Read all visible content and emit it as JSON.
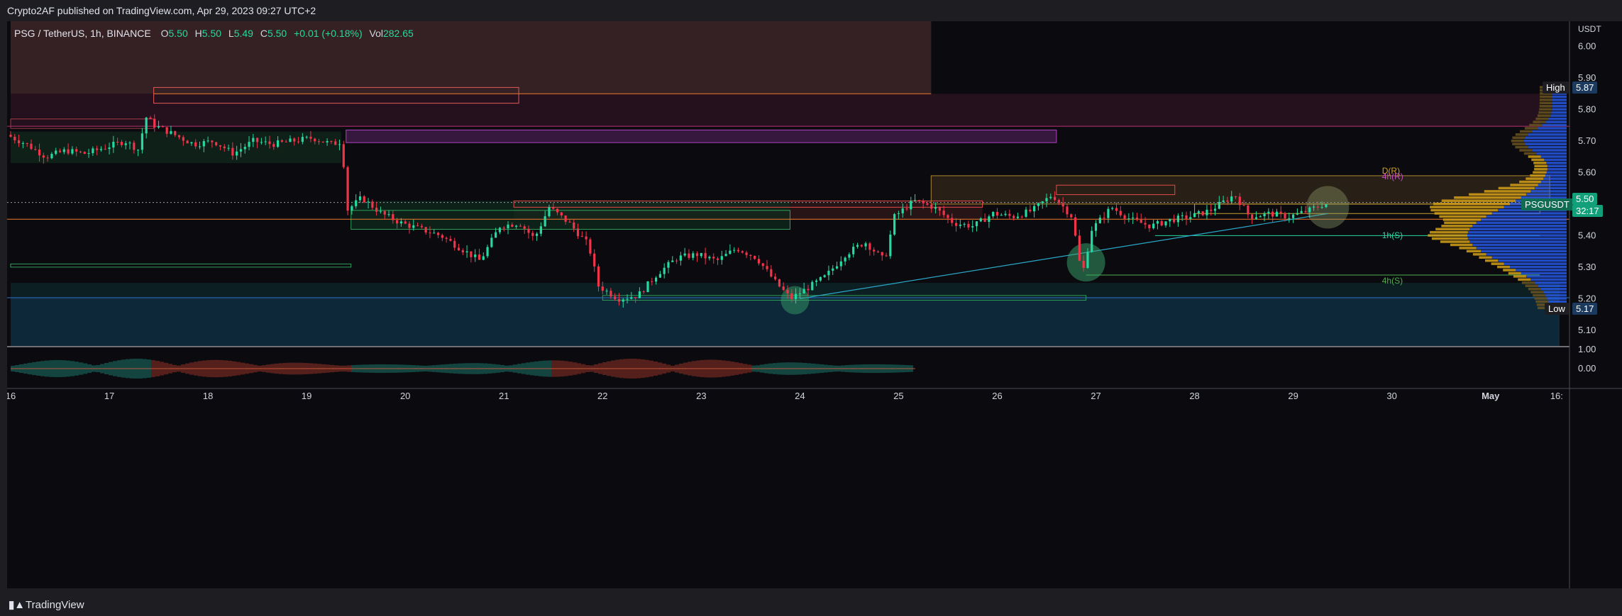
{
  "header": {
    "publisher_line": "Crypto2AF published on TradingView.com, Apr 29, 2023 09:27 UTC+2"
  },
  "legend": {
    "symbol": "PSG / TetherUS, 1h, BINANCE",
    "open_label": "O",
    "open": "5.50",
    "high_label": "H",
    "high": "5.50",
    "low_label": "L",
    "low": "5.49",
    "close_label": "C",
    "close": "5.50",
    "change": "+0.01 (+0.18%)",
    "vol_label": "Vol",
    "vol": "282.65"
  },
  "axis": {
    "currency": "USDT",
    "high_label": "High",
    "high_value": "5.87",
    "low_label": "Low",
    "low_value": "5.17",
    "current_symbol": "PSGUSDT",
    "current_price": "5.50",
    "countdown": "32:17"
  },
  "annotations": {
    "d_r": "D(R)",
    "h4_r": "4h(R)",
    "h1_s": "1h(S)",
    "h4_s": "4h(S)"
  },
  "footer": {
    "brand": "TradingView",
    "logo_icon": "tradingview-logo-icon"
  },
  "colors": {
    "bull": "#26d9a0",
    "bear": "#f0344a",
    "axis_text": "#d1d4dc",
    "volume_profile_blue": "#2962ff",
    "volume_profile_orange": "#d4a017"
  },
  "chart_data": {
    "type": "candlestick",
    "title": "PSG / TetherUS, 1h, BINANCE",
    "ylim": [
      5.05,
      6.08
    ],
    "y_ticks": [
      "6.00",
      "5.90",
      "5.80",
      "5.70",
      "5.60",
      "5.50",
      "5.40",
      "5.30",
      "5.20",
      "5.10"
    ],
    "x_ticks": [
      {
        "label": "16",
        "day": 16
      },
      {
        "label": "17",
        "day": 17
      },
      {
        "label": "18",
        "day": 18
      },
      {
        "label": "19",
        "day": 19
      },
      {
        "label": "20",
        "day": 20
      },
      {
        "label": "21",
        "day": 21
      },
      {
        "label": "22",
        "day": 22
      },
      {
        "label": "23",
        "day": 23
      },
      {
        "label": "24",
        "day": 24
      },
      {
        "label": "25",
        "day": 25
      },
      {
        "label": "26",
        "day": 26
      },
      {
        "label": "27",
        "day": 27
      },
      {
        "label": "28",
        "day": 28
      },
      {
        "label": "29",
        "day": 29
      },
      {
        "label": "30",
        "day": 30
      },
      {
        "label": "May",
        "day": 31
      },
      {
        "label": "16:",
        "day": 31.67
      }
    ],
    "xlim_days": [
      16,
      31.75
    ],
    "close_path": [
      [
        16.0,
        5.72
      ],
      [
        16.2,
        5.69
      ],
      [
        16.4,
        5.65
      ],
      [
        16.6,
        5.67
      ],
      [
        16.8,
        5.66
      ],
      [
        17.0,
        5.68
      ],
      [
        17.2,
        5.7
      ],
      [
        17.35,
        5.67
      ],
      [
        17.4,
        5.78
      ],
      [
        17.5,
        5.75
      ],
      [
        17.7,
        5.72
      ],
      [
        17.9,
        5.69
      ],
      [
        18.1,
        5.7
      ],
      [
        18.3,
        5.66
      ],
      [
        18.5,
        5.7
      ],
      [
        18.7,
        5.69
      ],
      [
        18.9,
        5.7
      ],
      [
        19.1,
        5.71
      ],
      [
        19.3,
        5.69
      ],
      [
        19.4,
        5.7
      ],
      [
        19.45,
        5.48
      ],
      [
        19.6,
        5.52
      ],
      [
        19.8,
        5.47
      ],
      [
        20.0,
        5.44
      ],
      [
        20.2,
        5.42
      ],
      [
        20.4,
        5.4
      ],
      [
        20.6,
        5.36
      ],
      [
        20.8,
        5.32
      ],
      [
        21.0,
        5.43
      ],
      [
        21.2,
        5.44
      ],
      [
        21.35,
        5.39
      ],
      [
        21.5,
        5.49
      ],
      [
        21.7,
        5.44
      ],
      [
        21.9,
        5.37
      ],
      [
        22.0,
        5.24
      ],
      [
        22.2,
        5.2
      ],
      [
        22.4,
        5.21
      ],
      [
        22.6,
        5.28
      ],
      [
        22.8,
        5.33
      ],
      [
        23.0,
        5.34
      ],
      [
        23.2,
        5.32
      ],
      [
        23.4,
        5.36
      ],
      [
        23.6,
        5.33
      ],
      [
        23.8,
        5.25
      ],
      [
        23.95,
        5.2
      ],
      [
        24.1,
        5.23
      ],
      [
        24.3,
        5.27
      ],
      [
        24.5,
        5.34
      ],
      [
        24.7,
        5.38
      ],
      [
        24.9,
        5.32
      ],
      [
        25.0,
        5.46
      ],
      [
        25.2,
        5.51
      ],
      [
        25.4,
        5.49
      ],
      [
        25.6,
        5.44
      ],
      [
        25.8,
        5.43
      ],
      [
        26.0,
        5.47
      ],
      [
        26.2,
        5.46
      ],
      [
        26.4,
        5.48
      ],
      [
        26.6,
        5.53
      ],
      [
        26.8,
        5.46
      ],
      [
        26.9,
        5.27
      ],
      [
        27.0,
        5.42
      ],
      [
        27.2,
        5.49
      ],
      [
        27.4,
        5.45
      ],
      [
        27.6,
        5.43
      ],
      [
        27.8,
        5.45
      ],
      [
        28.0,
        5.46
      ],
      [
        28.2,
        5.48
      ],
      [
        28.45,
        5.53
      ],
      [
        28.6,
        5.46
      ],
      [
        28.8,
        5.47
      ],
      [
        29.0,
        5.46
      ],
      [
        29.2,
        5.48
      ],
      [
        29.35,
        5.5
      ]
    ],
    "levels": [
      {
        "y": 5.505,
        "color": "#9aa0a6",
        "style": "dotted"
      },
      {
        "y": 5.452,
        "color": "#f07a2c"
      },
      {
        "y": 5.747,
        "color": "#b03070"
      },
      {
        "y": 5.203,
        "color": "#2f73c2"
      },
      {
        "y": 5.4,
        "color": "#26d9a0",
        "x0": 27.6,
        "x1": 31.5
      },
      {
        "y": 5.275,
        "color": "#4caf50",
        "x0": 26.9,
        "x1": 31.5
      }
    ],
    "volume_profile": {
      "current_price": 5.5,
      "high": 5.87,
      "low": 5.17
    }
  }
}
